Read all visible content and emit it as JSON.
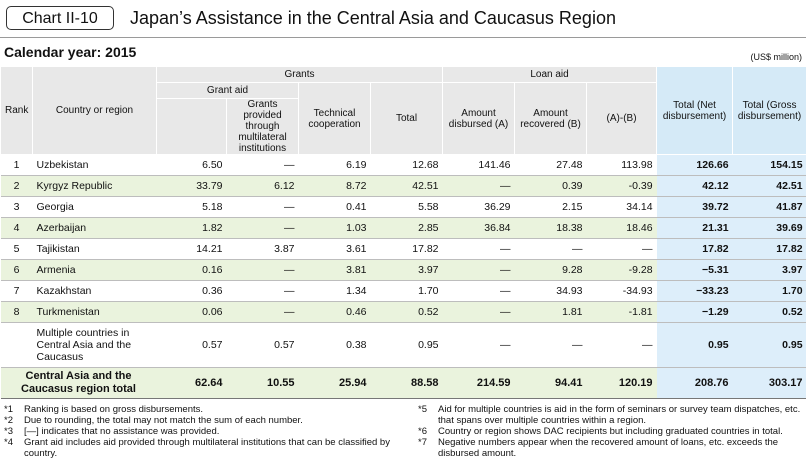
{
  "header": {
    "chart_label": "Chart II-10",
    "title": "Japan’s Assistance in the Central Asia and Caucasus Region"
  },
  "calendar_year": "Calendar year: 2015",
  "unit": "(US$ million)",
  "columns": {
    "rank": "Rank",
    "country": "Country or region",
    "grants": "Grants",
    "grant_aid": "Grant aid",
    "grants_multilateral": "Grants provided through multilateral institutions",
    "technical": "Technical cooperation",
    "total": "Total",
    "loan_aid": "Loan aid",
    "disbursed": "Amount disbursed (A)",
    "recovered": "Amount recovered (B)",
    "a_minus_b": "(A)-(B)",
    "total_net": "Total (Net disbursement)",
    "total_gross": "Total (Gross disbursement)"
  },
  "rows": [
    {
      "rank": "1",
      "country": "Uzbekistan",
      "grant": "6.50",
      "multi": "—",
      "tech": "6.19",
      "total": "12.68",
      "disb": "141.46",
      "recov": "27.48",
      "ab": "113.98",
      "net": "126.66",
      "gross": "154.15"
    },
    {
      "rank": "2",
      "country": "Kyrgyz Republic",
      "grant": "33.79",
      "multi": "6.12",
      "tech": "8.72",
      "total": "42.51",
      "disb": "—",
      "recov": "0.39",
      "ab": "-0.39",
      "net": "42.12",
      "gross": "42.51"
    },
    {
      "rank": "3",
      "country": "Georgia",
      "grant": "5.18",
      "multi": "—",
      "tech": "0.41",
      "total": "5.58",
      "disb": "36.29",
      "recov": "2.15",
      "ab": "34.14",
      "net": "39.72",
      "gross": "41.87"
    },
    {
      "rank": "4",
      "country": "Azerbaijan",
      "grant": "1.82",
      "multi": "—",
      "tech": "1.03",
      "total": "2.85",
      "disb": "36.84",
      "recov": "18.38",
      "ab": "18.46",
      "net": "21.31",
      "gross": "39.69"
    },
    {
      "rank": "5",
      "country": "Tajikistan",
      "grant": "14.21",
      "multi": "3.87",
      "tech": "3.61",
      "total": "17.82",
      "disb": "—",
      "recov": "—",
      "ab": "—",
      "net": "17.82",
      "gross": "17.82"
    },
    {
      "rank": "6",
      "country": "Armenia",
      "grant": "0.16",
      "multi": "—",
      "tech": "3.81",
      "total": "3.97",
      "disb": "—",
      "recov": "9.28",
      "ab": "-9.28",
      "net": "−5.31",
      "gross": "3.97"
    },
    {
      "rank": "7",
      "country": "Kazakhstan",
      "grant": "0.36",
      "multi": "—",
      "tech": "1.34",
      "total": "1.70",
      "disb": "—",
      "recov": "34.93",
      "ab": "-34.93",
      "net": "−33.23",
      "gross": "1.70"
    },
    {
      "rank": "8",
      "country": "Turkmenistan",
      "grant": "0.06",
      "multi": "—",
      "tech": "0.46",
      "total": "0.52",
      "disb": "—",
      "recov": "1.81",
      "ab": "-1.81",
      "net": "−1.29",
      "gross": "0.52"
    }
  ],
  "multi_row": {
    "country": "Multiple countries in Central Asia and the Caucasus",
    "grant": "0.57",
    "multi": "0.57",
    "tech": "0.38",
    "total": "0.95",
    "disb": "—",
    "recov": "—",
    "ab": "—",
    "net": "0.95",
    "gross": "0.95"
  },
  "total_row": {
    "label": "Central Asia and the Caucasus region total",
    "grant": "62.64",
    "multi": "10.55",
    "tech": "25.94",
    "total": "88.58",
    "disb": "214.59",
    "recov": "94.41",
    "ab": "120.19",
    "net": "208.76",
    "gross": "303.17"
  },
  "notes_left": [
    {
      "key": "*1",
      "text": "Ranking is based on gross disbursements."
    },
    {
      "key": "*2",
      "text": "Due to rounding, the total may not match the sum of each number."
    },
    {
      "key": "*3",
      "text": "[—] indicates that no assistance was provided."
    },
    {
      "key": "*4",
      "text": "Grant aid includes aid provided through multilateral institutions that can be classified by country."
    }
  ],
  "notes_right": [
    {
      "key": "*5",
      "text": "Aid for multiple countries is aid in the form of seminars or survey team dispatches, etc. that spans over multiple countries within a region."
    },
    {
      "key": "*6",
      "text": "Country or region shows DAC recipients but including graduated countries in total."
    },
    {
      "key": "*7",
      "text": "Negative numbers appear when the recovered amount of loans, etc. exceeds the disbursed amount."
    }
  ]
}
